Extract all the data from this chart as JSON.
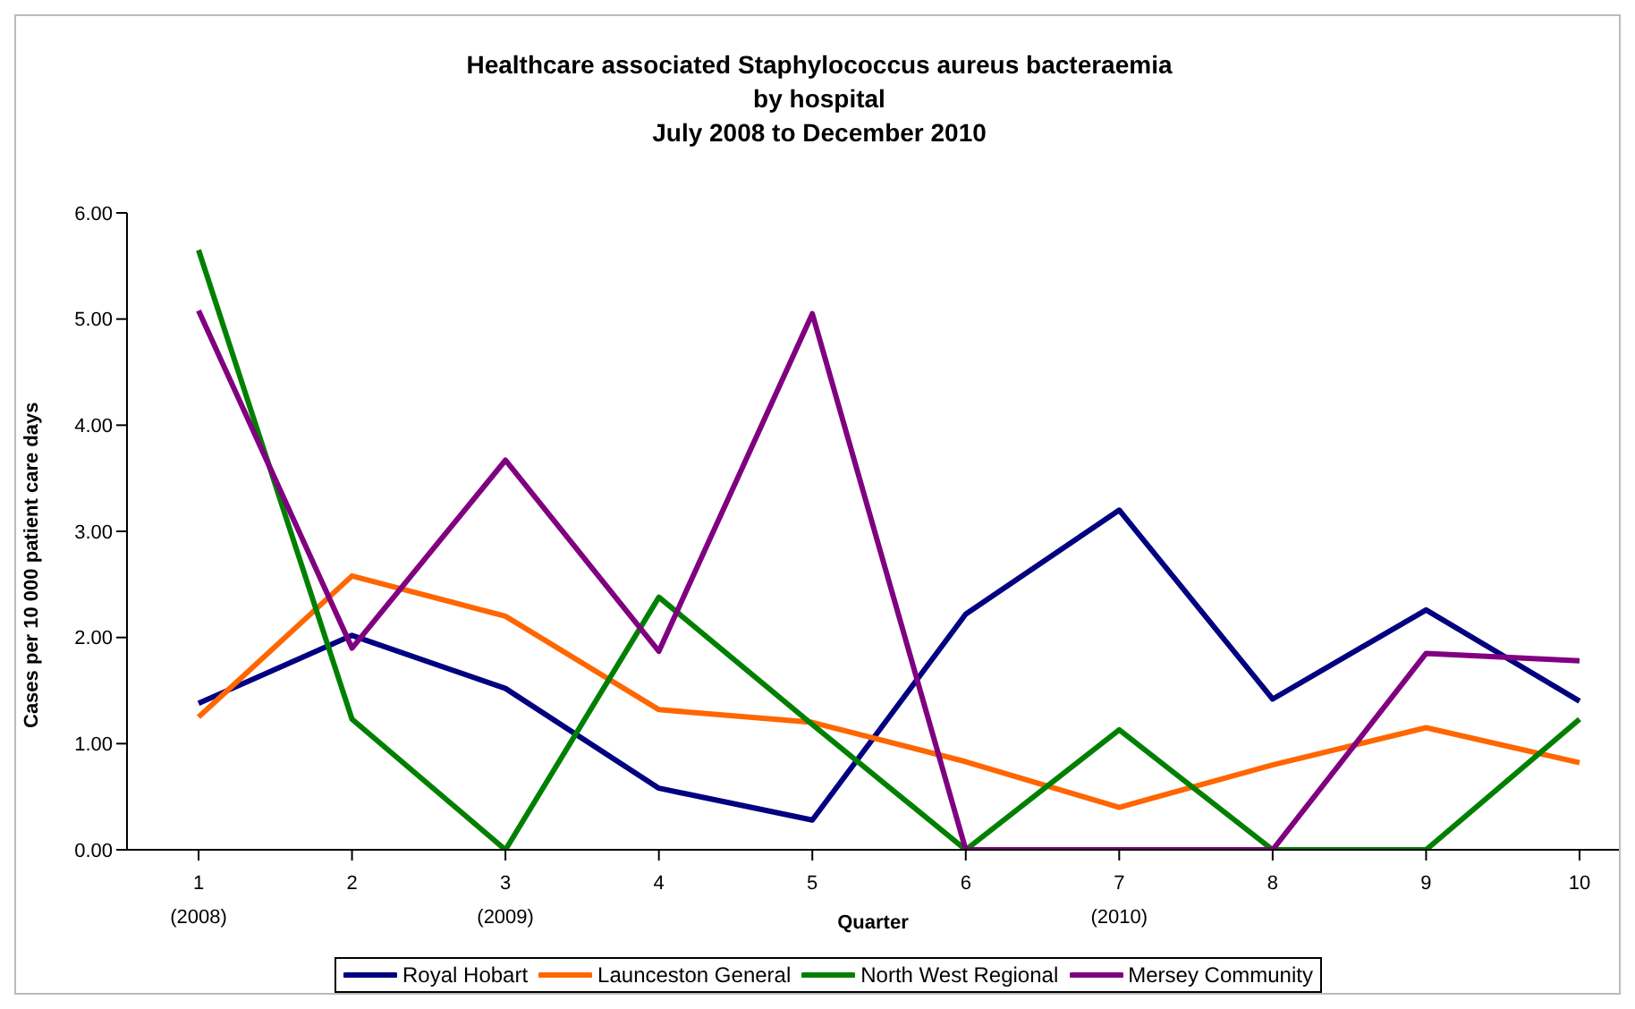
{
  "chart_data": {
    "type": "line",
    "title": "Healthcare associated Staphylococcus aureus bacteraemia\nby hospital\nJuly 2008 to December 2010",
    "xlabel": "Quarter",
    "ylabel": "Cases per 10 000 patient care days",
    "categories": [
      "1\n(2008)",
      "2",
      "3\n(2009)",
      "4",
      "5",
      "6",
      "7\n(2010)",
      "8",
      "9",
      "10"
    ],
    "series": [
      {
        "name": "Royal Hobart",
        "color": "#000080",
        "values": [
          1.38,
          2.02,
          1.52,
          0.58,
          0.28,
          2.22,
          3.2,
          1.42,
          2.26,
          1.4
        ]
      },
      {
        "name": "Launceston General",
        "color": "#ff6600",
        "values": [
          1.25,
          2.58,
          2.2,
          1.32,
          1.2,
          0.83,
          0.4,
          0.8,
          1.15,
          0.82
        ]
      },
      {
        "name": "North West Regional",
        "color": "#008000",
        "values": [
          5.65,
          1.23,
          0,
          2.38,
          1.18,
          0,
          1.13,
          0,
          0,
          1.23
        ]
      },
      {
        "name": "Mersey Community",
        "color": "#800080",
        "values": [
          5.08,
          1.9,
          3.67,
          1.87,
          5.05,
          0,
          0,
          0,
          1.85,
          1.78
        ]
      }
    ],
    "ylim": [
      0,
      6
    ],
    "yticks": [
      {
        "value": 0,
        "label": "0.00"
      },
      {
        "value": 1,
        "label": "1.00"
      },
      {
        "value": 2,
        "label": "2.00"
      },
      {
        "value": 3,
        "label": "3.00"
      },
      {
        "value": 4,
        "label": "4.00"
      },
      {
        "value": 5,
        "label": "5.00"
      },
      {
        "value": 6,
        "label": "6.00"
      }
    ],
    "grid": false,
    "legend": "bottom",
    "marker": "none",
    "line_style": "solid"
  }
}
